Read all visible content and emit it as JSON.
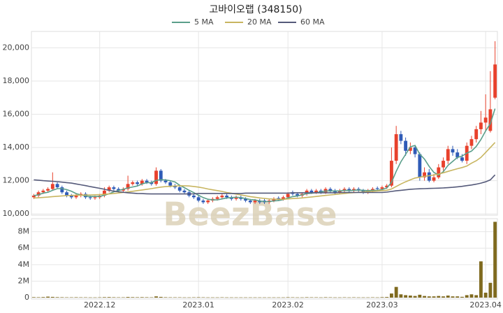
{
  "chart_data": {
    "type": "candlestick",
    "title": "고바이오랩 (348150)",
    "watermark": "BeezBase",
    "up_color": "#e8412c",
    "down_color": "#2f5bb7",
    "grid": true,
    "categories": [
      null,
      null,
      null,
      null,
      null,
      null,
      null,
      null,
      null,
      null,
      null,
      null,
      null,
      null,
      "2022.12",
      null,
      null,
      null,
      null,
      null,
      null,
      null,
      null,
      null,
      null,
      null,
      null,
      null,
      null,
      null,
      null,
      null,
      null,
      null,
      null,
      "2023.01",
      null,
      null,
      null,
      null,
      null,
      null,
      null,
      null,
      null,
      null,
      null,
      null,
      null,
      null,
      null,
      null,
      null,
      null,
      "2023.02",
      null,
      null,
      null,
      null,
      null,
      null,
      null,
      null,
      null,
      null,
      null,
      null,
      null,
      null,
      null,
      null,
      null,
      null,
      null,
      "2023.03",
      null,
      null,
      null,
      null,
      null,
      null,
      null,
      null,
      null,
      null,
      null,
      null,
      null,
      null,
      null,
      null,
      null,
      null,
      null,
      null,
      null,
      "2023.04",
      null,
      null
    ],
    "open": [
      11000,
      11100,
      11300,
      11400,
      11500,
      11800,
      11600,
      11300,
      11100,
      11000,
      11100,
      11200,
      11000,
      10950,
      11000,
      11100,
      11400,
      11600,
      11500,
      11400,
      11500,
      11800,
      11900,
      11800,
      12000,
      11900,
      11800,
      12600,
      12000,
      11900,
      11700,
      11600,
      11400,
      11300,
      11100,
      11000,
      10800,
      10700,
      10800,
      10900,
      11000,
      11100,
      11000,
      10900,
      11000,
      10900,
      10800,
      10700,
      10800,
      10800,
      10700,
      10800,
      10950,
      10900,
      11000,
      11300,
      11200,
      11100,
      11200,
      11400,
      11300,
      11400,
      11300,
      11500,
      11400,
      11300,
      11400,
      11500,
      11400,
      11500,
      11400,
      11300,
      11400,
      11550,
      11500,
      11600,
      11700,
      13200,
      14800,
      14400,
      13800,
      14000,
      13600,
      12200,
      12500,
      12000,
      12200,
      12800,
      13200,
      13900,
      13700,
      13400,
      13200,
      14100,
      14500,
      15100,
      15500,
      15000,
      17000
    ],
    "high": [
      11200,
      11400,
      11500,
      11600,
      12500,
      11900,
      11700,
      11400,
      11200,
      11200,
      11300,
      11300,
      11100,
      11100,
      11200,
      11600,
      11700,
      11700,
      11600,
      11600,
      12300,
      12000,
      12000,
      12100,
      12100,
      12000,
      12800,
      12700,
      12100,
      12000,
      11800,
      11700,
      11500,
      11400,
      11200,
      11100,
      10900,
      10900,
      11000,
      11100,
      11200,
      11200,
      11100,
      11100,
      11100,
      11000,
      10900,
      10900,
      10900,
      10900,
      10900,
      11000,
      11050,
      11100,
      11300,
      11400,
      11300,
      11300,
      11500,
      11500,
      11500,
      11500,
      11600,
      11600,
      11500,
      11500,
      11600,
      11600,
      11600,
      11600,
      11500,
      11500,
      11600,
      11650,
      11700,
      11800,
      14000,
      15300,
      15000,
      14600,
      14300,
      14100,
      13700,
      12800,
      12700,
      12400,
      13000,
      13400,
      14100,
      14100,
      13900,
      13600,
      14300,
      14700,
      15300,
      16200,
      17200,
      18600,
      20400
    ],
    "low": [
      10900,
      11000,
      11200,
      11300,
      11400,
      11500,
      11200,
      11000,
      10900,
      10900,
      11000,
      10900,
      10850,
      10850,
      10900,
      11000,
      11300,
      11400,
      11300,
      11300,
      11400,
      11700,
      11700,
      11700,
      11800,
      11700,
      11700,
      11900,
      11800,
      11600,
      11500,
      11300,
      11200,
      11000,
      10900,
      10700,
      10600,
      10600,
      10700,
      10800,
      10900,
      10900,
      10800,
      10800,
      10800,
      10700,
      10600,
      10600,
      10600,
      10600,
      10600,
      10700,
      10800,
      10800,
      10900,
      11100,
      11000,
      11000,
      11100,
      11200,
      11200,
      11200,
      11200,
      11300,
      11200,
      11200,
      11300,
      11300,
      11300,
      11300,
      11200,
      11200,
      11300,
      11400,
      11400,
      11500,
      11600,
      13000,
      14200,
      13500,
      13600,
      13400,
      12000,
      12000,
      11900,
      11900,
      12100,
      12600,
      13000,
      13500,
      13300,
      13100,
      13000,
      13900,
      14300,
      14800,
      15000,
      14900,
      16900
    ],
    "close": [
      11100,
      11300,
      11400,
      11500,
      11800,
      11600,
      11300,
      11100,
      11000,
      11100,
      11200,
      11000,
      10950,
      11000,
      11100,
      11400,
      11600,
      11500,
      11400,
      11500,
      11800,
      11900,
      11800,
      12000,
      11900,
      11800,
      12600,
      12000,
      11900,
      11700,
      11600,
      11400,
      11300,
      11100,
      11000,
      10800,
      10700,
      10800,
      10900,
      11000,
      11100,
      11000,
      10900,
      11000,
      10900,
      10800,
      10700,
      10800,
      10700,
      10700,
      10800,
      10900,
      10900,
      11000,
      11200,
      11200,
      11100,
      11200,
      11400,
      11300,
      11400,
      11300,
      11500,
      11400,
      11300,
      11400,
      11500,
      11400,
      11500,
      11400,
      11300,
      11400,
      11500,
      11500,
      11600,
      11700,
      13200,
      14800,
      14400,
      13800,
      14000,
      13600,
      12200,
      12500,
      12000,
      12200,
      12800,
      13200,
      13900,
      13700,
      13400,
      13200,
      14100,
      14500,
      15100,
      15500,
      15800,
      16300,
      19000
    ],
    "ylim": [
      9920,
      20990
    ],
    "yticks": [
      {
        "value": 10000,
        "label": "10,000"
      },
      {
        "value": 12000,
        "label": "12,000"
      },
      {
        "value": 14000,
        "label": "14,000"
      },
      {
        "value": 16000,
        "label": "16,000"
      },
      {
        "value": 18000,
        "label": "18,000"
      },
      {
        "value": 20000,
        "label": "20,000"
      }
    ],
    "series": [
      {
        "name": "5 MA",
        "color": "#5a9e8a",
        "values": [
          11100,
          11150,
          11250,
          11300,
          11420,
          11520,
          11520,
          11460,
          11360,
          11220,
          11140,
          11080,
          11050,
          11050,
          11050,
          11130,
          11210,
          11330,
          11400,
          11480,
          11560,
          11620,
          11680,
          11800,
          11880,
          11880,
          12020,
          12060,
          12040,
          12000,
          11920,
          11720,
          11580,
          11420,
          11280,
          11120,
          10980,
          10880,
          10840,
          10840,
          10900,
          10960,
          10980,
          11000,
          10980,
          10920,
          10860,
          10840,
          10780,
          10740,
          10740,
          10780,
          10800,
          10860,
          10960,
          11040,
          11080,
          11140,
          11220,
          11240,
          11280,
          11320,
          11380,
          11380,
          11380,
          11380,
          11420,
          11400,
          11420,
          11440,
          11420,
          11400,
          11420,
          11420,
          11460,
          11560,
          11900,
          12560,
          13140,
          13580,
          14040,
          14120,
          13600,
          13300,
          12860,
          12500,
          12340,
          12540,
          12920,
          13160,
          13400,
          13480,
          13660,
          13780,
          14060,
          14480,
          15000,
          15440,
          16340
        ]
      },
      {
        "name": "20 MA",
        "color": "#c8b560",
        "values": [
          10950,
          10970,
          10990,
          11010,
          11040,
          11060,
          11080,
          11100,
          11110,
          11120,
          11130,
          11140,
          11140,
          11150,
          11160,
          11180,
          11200,
          11230,
          11260,
          11290,
          11320,
          11360,
          11400,
          11440,
          11480,
          11520,
          11570,
          11610,
          11640,
          11660,
          11680,
          11690,
          11690,
          11680,
          11650,
          11610,
          11560,
          11500,
          11450,
          11400,
          11350,
          11290,
          11240,
          11190,
          11140,
          11090,
          11040,
          11000,
          10960,
          10930,
          10900,
          10890,
          10880,
          10880,
          10900,
          10920,
          10940,
          10960,
          10990,
          11020,
          11050,
          11080,
          11110,
          11140,
          11170,
          11200,
          11230,
          11260,
          11280,
          11300,
          11320,
          11340,
          11360,
          11380,
          11400,
          11420,
          11500,
          11650,
          11800,
          11930,
          12050,
          12160,
          12210,
          12260,
          12300,
          12340,
          12400,
          12470,
          12560,
          12640,
          12720,
          12790,
          12880,
          13050,
          13200,
          13400,
          13700,
          14000,
          14300
        ]
      },
      {
        "name": "60 MA",
        "color": "#555a7a",
        "values": [
          12050,
          12030,
          12000,
          11980,
          11960,
          11940,
          11910,
          11880,
          11850,
          11800,
          11750,
          11700,
          11640,
          11590,
          11540,
          11480,
          11420,
          11370,
          11330,
          11300,
          11270,
          11250,
          11230,
          11220,
          11210,
          11200,
          11200,
          11200,
          11200,
          11200,
          11200,
          11200,
          11200,
          11200,
          11210,
          11230,
          11230,
          11230,
          11230,
          11230,
          11230,
          11230,
          11230,
          11230,
          11230,
          11250,
          11250,
          11250,
          11250,
          11250,
          11250,
          11250,
          11250,
          11250,
          11250,
          11270,
          11270,
          11270,
          11270,
          11270,
          11270,
          11270,
          11270,
          11270,
          11270,
          11290,
          11290,
          11290,
          11290,
          11290,
          11290,
          11290,
          11290,
          11290,
          11290,
          11310,
          11350,
          11390,
          11420,
          11450,
          11480,
          11500,
          11510,
          11520,
          11530,
          11540,
          11550,
          11560,
          11580,
          11600,
          11630,
          11660,
          11700,
          11740,
          11790,
          11850,
          11930,
          12050,
          12350
        ]
      }
    ],
    "volume": {
      "color": "#7f6a1f",
      "ylim": [
        -170000,
        9580000
      ],
      "yticks": [
        {
          "value": 0,
          "label": "0"
        },
        {
          "value": 2000000,
          "label": "2M"
        },
        {
          "value": 4000000,
          "label": "4M"
        },
        {
          "value": 6000000,
          "label": "6M"
        },
        {
          "value": 8000000,
          "label": "8M"
        }
      ],
      "values": [
        60000,
        50000,
        70000,
        120000,
        90000,
        60000,
        50000,
        40000,
        40000,
        50000,
        40000,
        40000,
        30000,
        30000,
        40000,
        60000,
        70000,
        50000,
        40000,
        40000,
        80000,
        60000,
        50000,
        60000,
        50000,
        40000,
        150000,
        90000,
        50000,
        40000,
        40000,
        40000,
        30000,
        30000,
        40000,
        50000,
        40000,
        30000,
        30000,
        30000,
        40000,
        30000,
        30000,
        30000,
        30000,
        30000,
        30000,
        30000,
        30000,
        30000,
        30000,
        30000,
        30000,
        30000,
        50000,
        40000,
        30000,
        30000,
        50000,
        40000,
        40000,
        30000,
        50000,
        40000,
        30000,
        30000,
        40000,
        30000,
        40000,
        30000,
        30000,
        30000,
        40000,
        30000,
        60000,
        80000,
        500000,
        1300000,
        400000,
        300000,
        250000,
        200000,
        350000,
        200000,
        150000,
        150000,
        200000,
        150000,
        250000,
        150000,
        150000,
        100000,
        300000,
        400000,
        300000,
        4400000,
        600000,
        1800000,
        9200000
      ]
    }
  }
}
